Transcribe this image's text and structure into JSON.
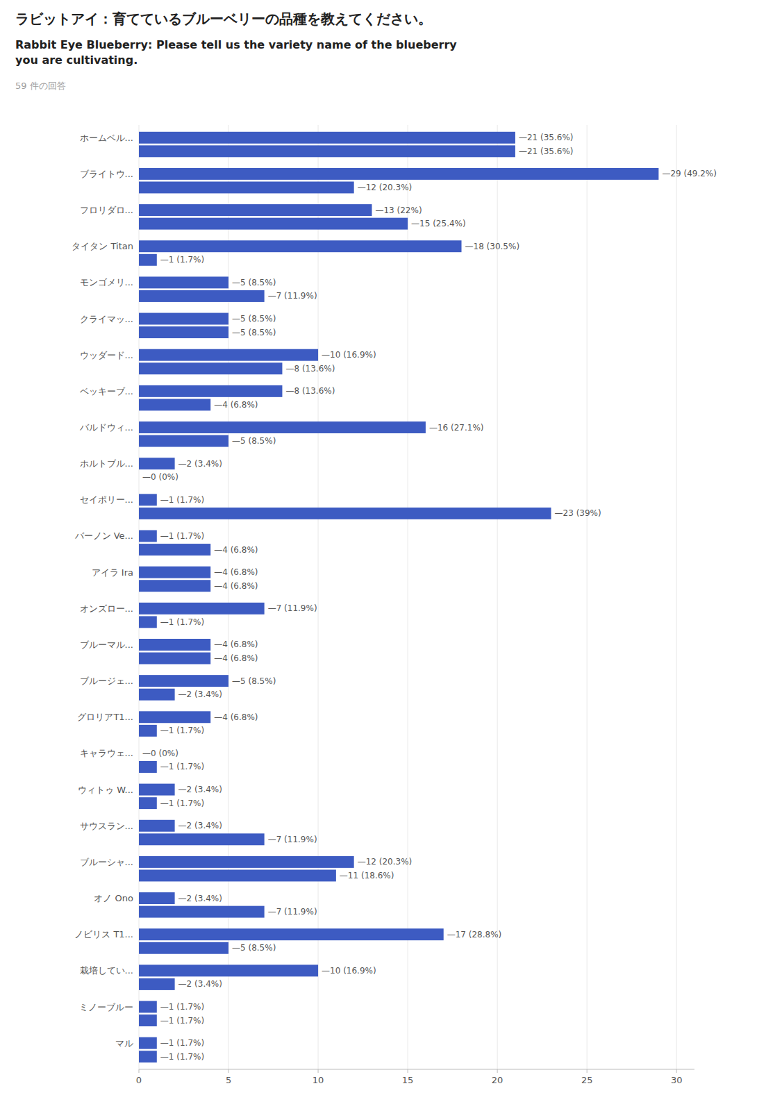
{
  "chart_data": {
    "type": "bar",
    "orientation": "horizontal",
    "title": "ラビットアイ：育てているブルーベリーの品種を教えてください。",
    "subtitle": "Rabbit Eye Blueberry: Please tell us the variety name of the blueberry\nyou are cultivating.",
    "annotations": [
      "59 件の回答"
    ],
    "color": "#3D5BC2",
    "xlim": [
      0,
      31
    ],
    "xticks": [
      0,
      5,
      10,
      15,
      20,
      25,
      30
    ],
    "grid": true,
    "data_labels": true,
    "tick_labels": "y",
    "categories": [
      "ホームベル...",
      "ブライトウ...",
      "フロリダロ...",
      "タイタン Titan",
      "モンゴメリ...",
      "クライマッ...",
      "ウッダード...",
      "ベッキーブ...",
      "バルドウィ...",
      "ホルトブル...",
      "セイポリー...",
      "バーノン Ve...",
      "アイラ Ira",
      "オンズロー...",
      "ブルーマル...",
      "ブルージェ...",
      "グロリアT1...",
      "キャラウェ...",
      "ウィトゥ W...",
      "サウスラン...",
      "ブルーシャ...",
      "オノ Ono",
      "ノビリス T1...",
      "栽培してい...",
      "ミノーブルー",
      "マル"
    ],
    "series": [
      {
        "values": [
          21,
          29,
          13,
          18,
          5,
          5,
          10,
          8,
          16,
          2,
          1,
          1,
          4,
          7,
          4,
          5,
          4,
          0,
          2,
          2,
          12,
          2,
          17,
          10,
          1,
          1
        ],
        "value_labels": [
          "—21 (35.6%)",
          "—29 (49.2%)",
          "—13 (22%)",
          "—18 (30.5%)",
          "—5 (8.5%)",
          "—5 (8.5%)",
          "—10 (16.9%)",
          "—8 (13.6%)",
          "—16 (27.1%)",
          "—2 (3.4%)",
          "—1 (1.7%)",
          "—1 (1.7%)",
          "—4 (6.8%)",
          "—7 (11.9%)",
          "—4 (6.8%)",
          "—5 (8.5%)",
          "—4 (6.8%)",
          "—0 (0%)",
          "—2 (3.4%)",
          "—2 (3.4%)",
          "—12 (20.3%)",
          "—2 (3.4%)",
          "—17 (28.8%)",
          "—10 (16.9%)",
          "—1 (1.7%)",
          "—1 (1.7%)"
        ]
      },
      {
        "values": [
          21,
          12,
          15,
          1,
          7,
          5,
          8,
          4,
          5,
          0,
          23,
          4,
          4,
          1,
          4,
          2,
          1,
          1,
          1,
          7,
          11,
          7,
          5,
          2,
          1,
          1
        ],
        "value_labels": [
          "—21 (35.6%)",
          "—12 (20.3%)",
          "—15 (25.4%)",
          "—1 (1.7%)",
          "—7 (11.9%)",
          "—5 (8.5%)",
          "—8 (13.6%)",
          "—4 (6.8%)",
          "—5 (8.5%)",
          "—0 (0%)",
          "—23 (39%)",
          "—4 (6.8%)",
          "—4 (6.8%)",
          "—1 (1.7%)",
          "—4 (6.8%)",
          "—2 (3.4%)",
          "—1 (1.7%)",
          "—1 (1.7%)",
          "—1 (1.7%)",
          "—7 (11.9%)",
          "—11 (18.6%)",
          "—7 (11.9%)",
          "—5 (8.5%)",
          "—2 (3.4%)",
          "—1 (1.7%)",
          "—1 (1.7%)"
        ]
      }
    ]
  }
}
